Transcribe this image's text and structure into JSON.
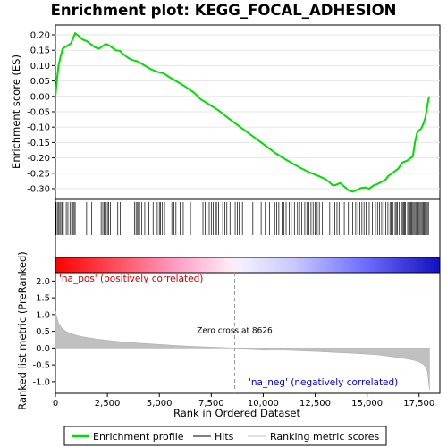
{
  "chart_data": {
    "type": "line",
    "title": "Enrichment plot: KEGG_FOCAL_ADHESION",
    "xlabel": "Rank in Ordered Dataset",
    "xlim": [
      0,
      18500
    ],
    "xticks": [
      0,
      2500,
      5000,
      7500,
      10000,
      12500,
      15000,
      17500
    ],
    "xtick_labels": [
      "0",
      "2,500",
      "5,000",
      "7,500",
      "10,000",
      "12,500",
      "15,000",
      "17,500"
    ],
    "panels": {
      "es": {
        "ylabel": "Enrichment score (ES)",
        "ylim": [
          -0.335,
          0.232
        ],
        "yticks": [
          -0.3,
          -0.25,
          -0.2,
          -0.15,
          -0.1,
          -0.05,
          0.0,
          0.05,
          0.1,
          0.15,
          0.2
        ],
        "ytick_labels": [
          "-0.30",
          "-0.25",
          "-0.20",
          "-0.15",
          "-0.10",
          "-0.05",
          "0.00",
          "0.05",
          "0.10",
          "0.15",
          "0.20"
        ]
      },
      "metric": {
        "ylabel": "Ranked list metric (PreRanked)",
        "ylim": [
          -1.35,
          2.25
        ],
        "yticks": [
          -1.0,
          -0.5,
          0.0,
          0.5,
          1.0,
          1.5,
          2.0
        ],
        "ytick_labels": [
          "-1.0",
          "-0.5",
          "0.0",
          "0.5",
          "1.0",
          "1.5",
          "2.0"
        ]
      }
    },
    "series": [
      {
        "name": "Enrichment profile",
        "color": "#00dd00",
        "x": [
          0,
          80,
          150,
          250,
          350,
          450,
          550,
          650,
          750,
          850,
          950,
          1050,
          1150,
          1300,
          1500,
          1700,
          1900,
          2100,
          2300,
          2400,
          2500,
          2600,
          2700,
          2900,
          3100,
          3300,
          3500,
          3700,
          3900,
          4100,
          4300,
          4600,
          4900,
          5200,
          5500,
          5800,
          6100,
          6400,
          6700,
          7000,
          7300,
          7600,
          7900,
          8200,
          8500,
          8800,
          9100,
          9400,
          9700,
          10000,
          10300,
          10600,
          10900,
          11200,
          11500,
          11800,
          12100,
          12400,
          12700,
          13000,
          13200,
          13350,
          13500,
          13700,
          13900,
          14100,
          14300,
          14500,
          14700,
          14900,
          15100,
          15300,
          15500,
          15700,
          15900,
          16000,
          16100,
          16300,
          16500,
          16600,
          16700,
          16900,
          17000,
          17100,
          17200,
          17300,
          17400,
          17500,
          17600,
          17700,
          17800,
          17850,
          17900,
          17950,
          18000
        ],
        "y": [
          0.0,
          0.06,
          0.1,
          0.13,
          0.155,
          0.16,
          0.163,
          0.168,
          0.172,
          0.19,
          0.205,
          0.2,
          0.195,
          0.185,
          0.18,
          0.17,
          0.16,
          0.155,
          0.165,
          0.17,
          0.168,
          0.165,
          0.16,
          0.15,
          0.148,
          0.135,
          0.125,
          0.118,
          0.115,
          0.108,
          0.1,
          0.088,
          0.08,
          0.075,
          0.062,
          0.05,
          0.038,
          0.025,
          0.01,
          -0.01,
          -0.022,
          -0.035,
          -0.048,
          -0.065,
          -0.08,
          -0.095,
          -0.11,
          -0.125,
          -0.14,
          -0.155,
          -0.17,
          -0.185,
          -0.198,
          -0.21,
          -0.222,
          -0.233,
          -0.243,
          -0.252,
          -0.26,
          -0.27,
          -0.28,
          -0.29,
          -0.288,
          -0.282,
          -0.293,
          -0.305,
          -0.31,
          -0.305,
          -0.298,
          -0.296,
          -0.3,
          -0.29,
          -0.285,
          -0.278,
          -0.27,
          -0.26,
          -0.255,
          -0.245,
          -0.235,
          -0.225,
          -0.215,
          -0.21,
          -0.205,
          -0.2,
          -0.195,
          -0.15,
          -0.12,
          -0.11,
          -0.105,
          -0.09,
          -0.07,
          -0.05,
          -0.03,
          -0.01,
          0.0
        ]
      },
      {
        "name": "Hits",
        "color": "#000000"
      },
      {
        "name": "Ranking metric scores",
        "color": "#c0c0c0",
        "x": [
          0,
          50,
          150,
          300,
          500,
          800,
          1200,
          2000,
          3000,
          4000,
          5000,
          6000,
          7000,
          8000,
          8626,
          9500,
          10500,
          11500,
          12500,
          13500,
          14500,
          15500,
          16000,
          16500,
          17000,
          17300,
          17500,
          17700,
          17800,
          17900,
          17950,
          18000
        ],
        "y": [
          1.1,
          0.95,
          0.75,
          0.6,
          0.5,
          0.42,
          0.35,
          0.27,
          0.2,
          0.15,
          0.11,
          0.07,
          0.04,
          0.015,
          0.0,
          -0.02,
          -0.05,
          -0.075,
          -0.1,
          -0.13,
          -0.16,
          -0.2,
          -0.24,
          -0.28,
          -0.33,
          -0.37,
          -0.42,
          -0.48,
          -0.55,
          -0.7,
          -0.95,
          -1.25
        ]
      }
    ],
    "hits": [
      30,
      90,
      140,
      210,
      260,
      320,
      380,
      520,
      600,
      700,
      780,
      850,
      900,
      950,
      1500,
      1750,
      2200,
      2280,
      2350,
      2420,
      2500,
      2560,
      2650,
      3000,
      3120,
      3800,
      3880,
      3950,
      4000,
      4050,
      4150,
      4300,
      4500,
      4700,
      4900,
      5000,
      5050,
      5150,
      5250,
      5600,
      5700,
      5800,
      6000,
      6050,
      6150,
      6500,
      7100,
      7200,
      7300,
      7400,
      7500,
      7600,
      7700,
      7750,
      7850,
      8050,
      8150,
      8250,
      8400,
      8500,
      8650,
      8750,
      8850,
      9000,
      9500,
      9700,
      9900,
      10100,
      10300,
      10550,
      10650,
      10750,
      10900,
      11000,
      11100,
      11250,
      11350,
      11500,
      11650,
      11750,
      11850,
      12000,
      12100,
      12200,
      12300,
      12400,
      12500,
      12600,
      12700,
      12850,
      13200,
      13350,
      13450,
      13550,
      13650,
      13900,
      14100,
      14300,
      14450,
      14550,
      14650,
      14750,
      14850,
      14950,
      15100,
      15250,
      15400,
      15500,
      15600,
      15700,
      15800,
      15900,
      16000,
      16100,
      16150,
      16200,
      16250,
      16350,
      16400,
      16450,
      16550,
      16650,
      16700,
      16750,
      16800,
      16850,
      16950,
      17000,
      17050,
      17100,
      17150,
      17200,
      17250,
      17300,
      17350,
      17400,
      17450,
      17500,
      17550,
      17600,
      17650,
      17700,
      17750,
      17800,
      17850,
      17900,
      17950
    ],
    "zero_cross": {
      "x": 8626,
      "label": "Zero cross at 8626"
    },
    "annotations": {
      "pos": {
        "text": "'na_pos' (positively correlated)",
        "color": "#cc0000"
      },
      "neg": {
        "text": "'na_neg' (negatively correlated)",
        "color": "#0000cc"
      }
    },
    "legend": {
      "placement": "bottom",
      "entries": [
        "Enrichment profile",
        "Hits",
        "Ranking metric scores"
      ]
    }
  }
}
